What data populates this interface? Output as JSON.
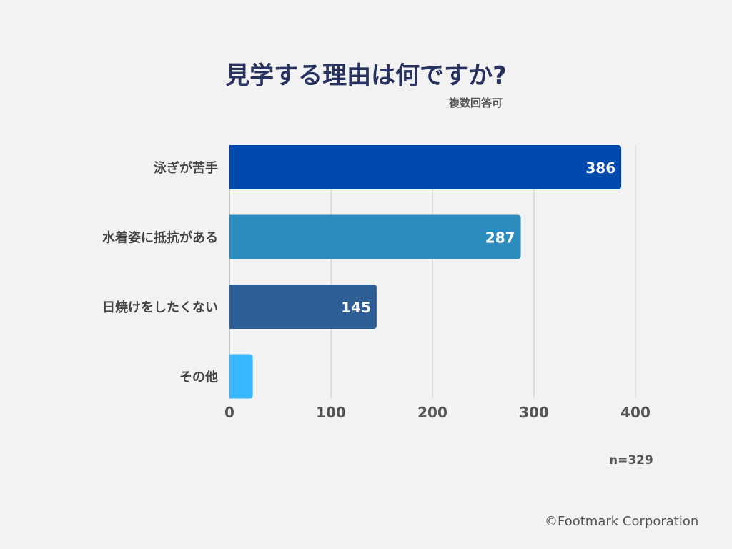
{
  "chart_data": {
    "type": "bar",
    "orientation": "horizontal",
    "title": "見学する理由は何ですか?",
    "subtitle": "複数回答可",
    "categories": [
      "泳ぎが苦手",
      "水着姿に抵抗がある",
      "日焼けをしたくない",
      "その他"
    ],
    "values": [
      386,
      287,
      145,
      23
    ],
    "data_labels": [
      "386",
      "287",
      "145",
      ""
    ],
    "colors": [
      "#004aad",
      "#2b8cbd",
      "#2e5e96",
      "#38b6ff"
    ],
    "xlim": [
      0,
      400
    ],
    "xticks": [
      "0",
      "100",
      "200",
      "300",
      "400"
    ],
    "grid": true,
    "note": "n=329"
  },
  "footer": {
    "copyright": "©Footmark Corporation"
  }
}
